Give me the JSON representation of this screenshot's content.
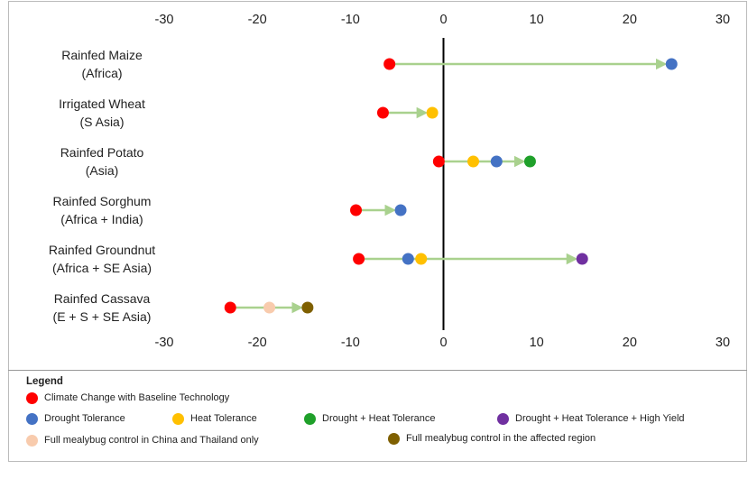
{
  "chart_data": {
    "type": "dumbbell",
    "title": "",
    "xlabel": "",
    "ylabel": "",
    "xlim": [
      -30,
      30
    ],
    "x_ticks": [
      "-30",
      "-20",
      "-10",
      "0",
      "10",
      "20",
      "30"
    ],
    "grid": false,
    "legend_placement": "bottom",
    "categories": [
      {
        "line1": "Rainfed Maize",
        "line2": "(Africa)",
        "points": [
          {
            "series": "baseline",
            "x": -5.8
          },
          {
            "series": "drought",
            "x": 24.5
          }
        ],
        "arrow_from": -5.8,
        "arrow_to": 24.5
      },
      {
        "line1": "Irrigated Wheat",
        "line2": "(S Asia)",
        "points": [
          {
            "series": "baseline",
            "x": -6.5
          },
          {
            "series": "heat",
            "x": -1.2
          }
        ],
        "arrow_from": -6.5,
        "arrow_to": -1.2
      },
      {
        "line1": "Rainfed Potato",
        "line2": "(Asia)",
        "points": [
          {
            "series": "baseline",
            "x": -0.5
          },
          {
            "series": "heat",
            "x": 3.2
          },
          {
            "series": "drought",
            "x": 5.7
          },
          {
            "series": "drought_heat",
            "x": 9.3
          }
        ],
        "arrow_from": -0.5,
        "arrow_to": 9.3
      },
      {
        "line1": "Rainfed Sorghum",
        "line2": "(Africa + India)",
        "points": [
          {
            "series": "baseline",
            "x": -9.4
          },
          {
            "series": "drought",
            "x": -4.6
          }
        ],
        "arrow_from": -9.4,
        "arrow_to": -4.6
      },
      {
        "line1": "Rainfed Groundnut",
        "line2": "(Africa + SE Asia)",
        "points": [
          {
            "series": "baseline",
            "x": -9.1
          },
          {
            "series": "drought",
            "x": -3.8
          },
          {
            "series": "heat",
            "x": -2.4
          },
          {
            "series": "dht_yield",
            "x": 14.9
          }
        ],
        "arrow_from": -9.1,
        "arrow_to": 14.9
      },
      {
        "line1": "Rainfed Cassava",
        "line2": "(E + S + SE Asia)",
        "points": [
          {
            "series": "baseline",
            "x": -22.9
          },
          {
            "series": "mealybug_china_thai",
            "x": -18.7
          },
          {
            "series": "mealybug_full",
            "x": -14.6
          }
        ],
        "arrow_from": -22.9,
        "arrow_to": -14.6
      }
    ],
    "series": {
      "baseline": {
        "name": "Climate Change with Baseline Technology",
        "color": "#ff0000"
      },
      "drought": {
        "name": "Drought Tolerance",
        "color": "#4472c4"
      },
      "heat": {
        "name": "Heat Tolerance",
        "color": "#ffc000"
      },
      "drought_heat": {
        "name": "Drought + Heat Tolerance",
        "color": "#1fa02a"
      },
      "dht_yield": {
        "name": "Drought + Heat Tolerance + High Yield",
        "color": "#7030a0"
      },
      "mealybug_china_thai": {
        "name": "Full mealybug control in China and Thailand only",
        "color": "#f8cbad"
      },
      "mealybug_full": {
        "name": "Full mealybug control in the affected region",
        "color": "#7f6000"
      }
    },
    "arrow_color": "#a9d18e",
    "zero_line_color": "#000000"
  },
  "legend": {
    "title": "Legend",
    "items": [
      {
        "key": "baseline",
        "label": "Climate Change with Baseline Technology",
        "color": "#ff0000"
      },
      {
        "key": "drought",
        "label": "Drought Tolerance",
        "color": "#4472c4"
      },
      {
        "key": "heat",
        "label": "Heat Tolerance",
        "color": "#ffc000"
      },
      {
        "key": "drought_heat",
        "label": "Drought + Heat Tolerance",
        "color": "#1fa02a"
      },
      {
        "key": "dht_yield",
        "label": "Drought + Heat Tolerance + High Yield",
        "color": "#7030a0"
      },
      {
        "key": "mealybug_china_thai",
        "label": "Full mealybug control in China and Thailand only",
        "color": "#f8cbad"
      },
      {
        "key": "mealybug_full",
        "label": "Full mealybug control in the affected region",
        "color": "#7f6000"
      }
    ]
  }
}
